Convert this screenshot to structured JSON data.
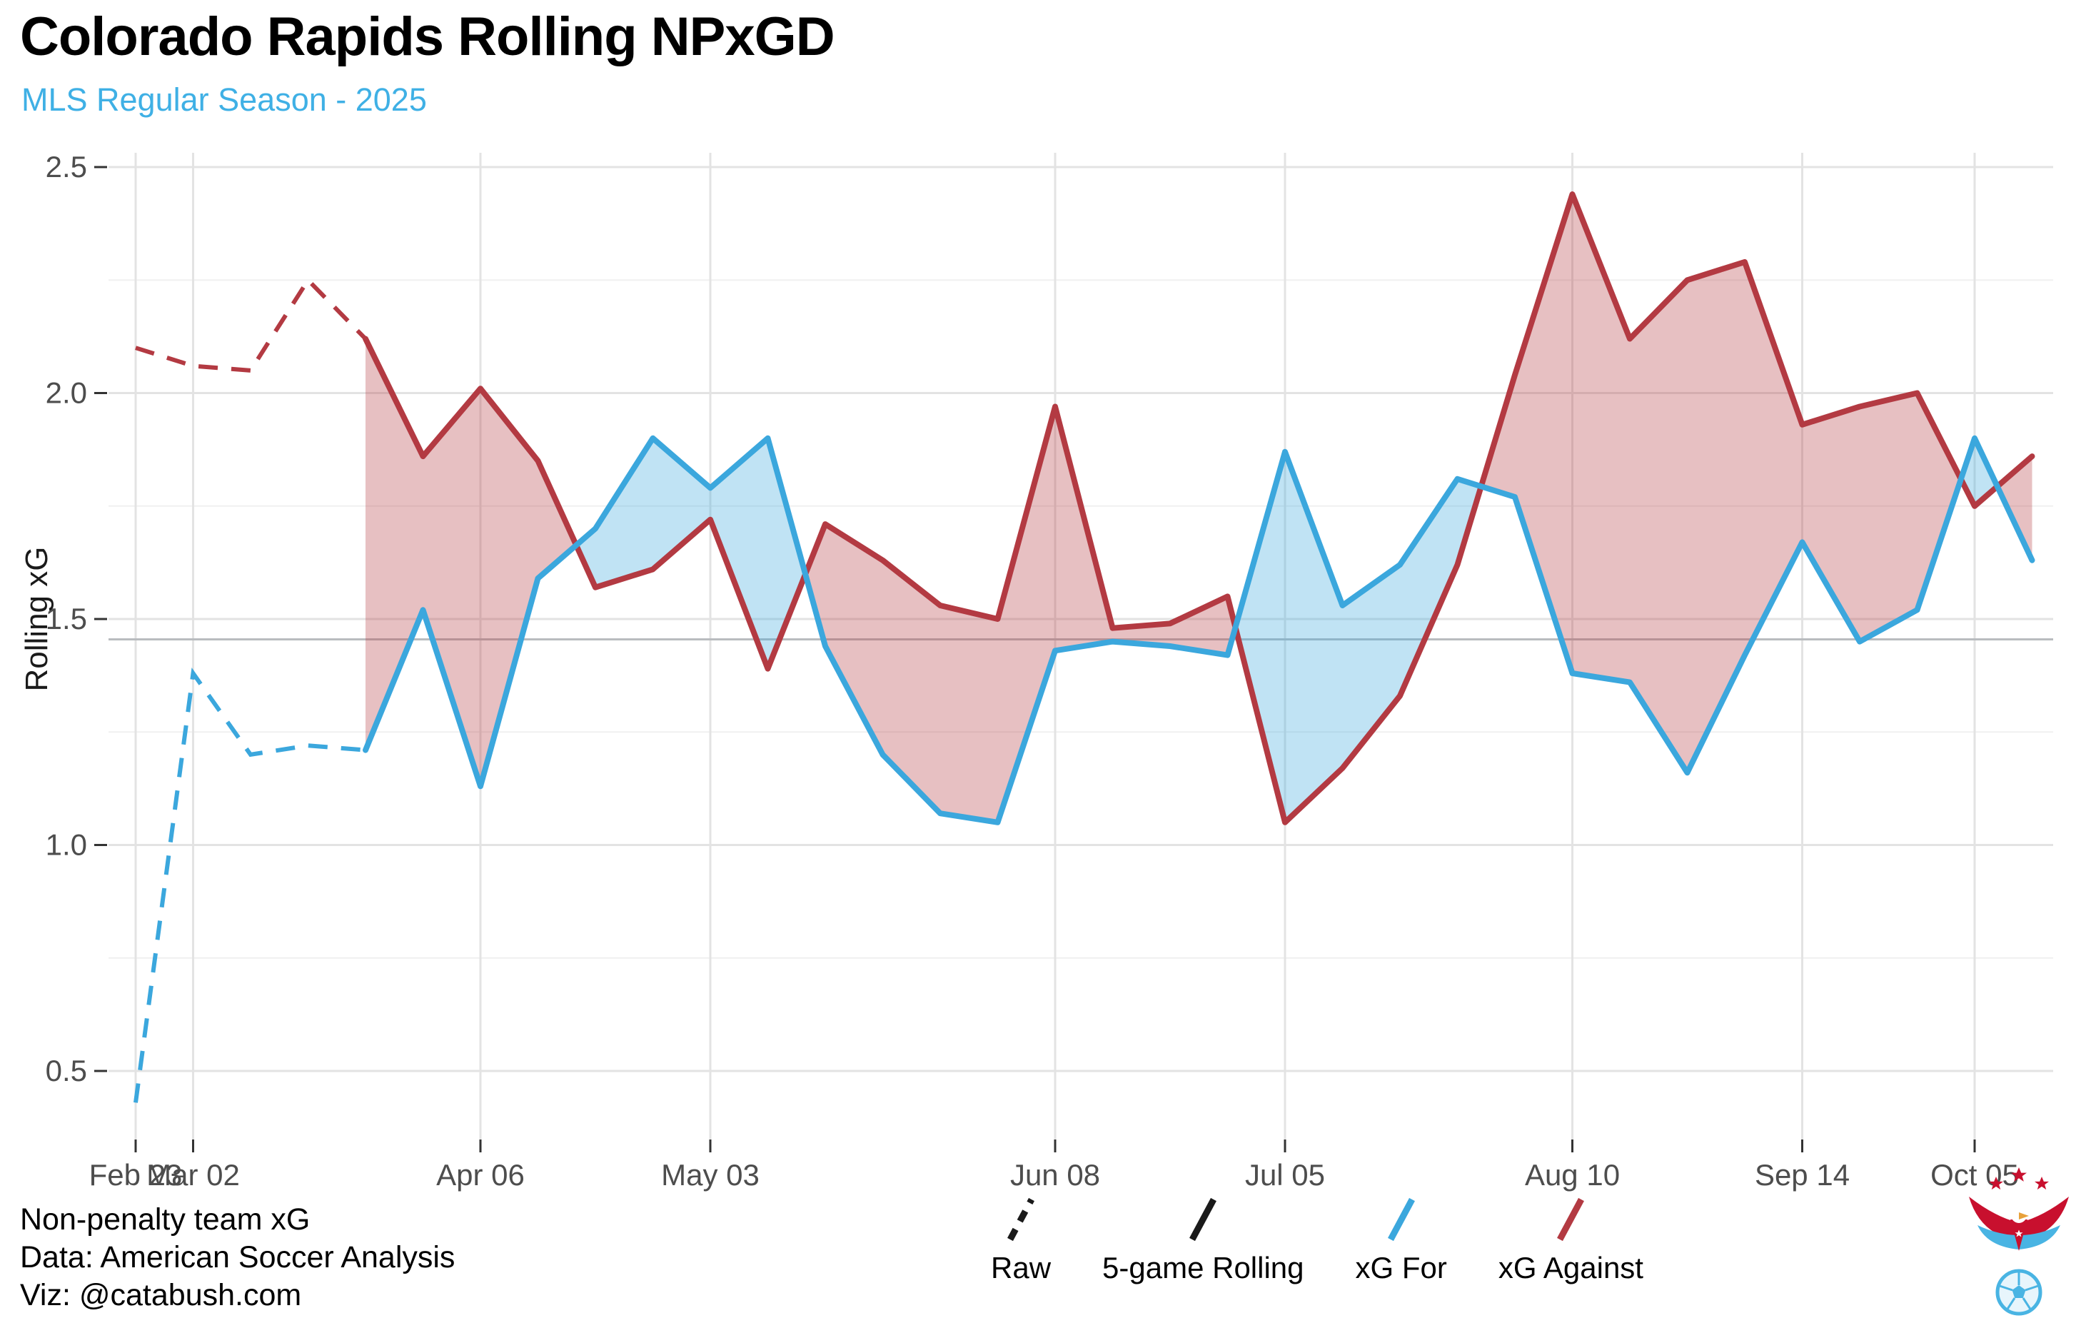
{
  "chart_data": {
    "type": "line",
    "title": "Colorado Rapids Rolling NPxGD",
    "subtitle": "MLS Regular Season - 2025",
    "ylabel": "Rolling xG",
    "xlabel": "",
    "ylim": [
      0.35,
      2.53
    ],
    "y_ticks": [
      0.5,
      1.0,
      1.5,
      2.0,
      2.5
    ],
    "y_tick_labels": [
      "0.5",
      "1.0",
      "1.5",
      "2.0",
      "2.5"
    ],
    "y_minor_ticks": [
      0.75,
      1.25,
      1.75,
      2.25
    ],
    "reference_line_value": 1.455,
    "grid": true,
    "legend_position": "bottom",
    "games": 34,
    "rolling_window": 5,
    "rolling_start_game": 5,
    "x_ticks": [
      {
        "label": "Feb 23",
        "game": 1
      },
      {
        "label": "Mar 02",
        "game": 2
      },
      {
        "label": "Apr 06",
        "game": 7
      },
      {
        "label": "May 03",
        "game": 11
      },
      {
        "label": "Jun 08",
        "game": 17
      },
      {
        "label": "Jul 05",
        "game": 21
      },
      {
        "label": "Aug 10",
        "game": 26
      },
      {
        "label": "Sep 14",
        "game": 30
      },
      {
        "label": "Oct 05",
        "game": 33
      }
    ],
    "xg_for": {
      "label": "xG For",
      "color": "#3BA7DD",
      "fill": "rgba(59,167,221,0.32)",
      "values": [
        0.43,
        1.38,
        1.2,
        1.22,
        1.21,
        1.52,
        1.13,
        1.59,
        1.7,
        1.9,
        1.79,
        1.9,
        1.44,
        1.2,
        1.07,
        1.05,
        1.43,
        1.45,
        1.44,
        1.42,
        1.87,
        1.53,
        1.62,
        1.81,
        1.77,
        1.38,
        1.36,
        1.16,
        1.42,
        1.67,
        1.45,
        1.52,
        1.9,
        1.63
      ]
    },
    "xg_against": {
      "label": "xG Against",
      "color": "#B33A42",
      "fill": "rgba(179,58,66,0.32)",
      "values": [
        2.1,
        2.06,
        2.05,
        2.25,
        2.12,
        1.86,
        2.01,
        1.85,
        1.57,
        1.61,
        1.72,
        1.39,
        1.71,
        1.63,
        1.53,
        1.5,
        1.97,
        1.48,
        1.49,
        1.55,
        1.05,
        1.17,
        1.33,
        1.62,
        2.04,
        2.44,
        2.12,
        2.25,
        2.29,
        1.93,
        1.97,
        2.0,
        1.75,
        1.86
      ]
    }
  },
  "legend": [
    {
      "label": "Raw",
      "style": "dashed",
      "color": "#1a1a1a"
    },
    {
      "label": "5-game Rolling",
      "style": "solid",
      "color": "#1a1a1a"
    },
    {
      "label": "xG For",
      "style": "solid",
      "color": "#3BA7DD"
    },
    {
      "label": "xG Against",
      "style": "solid",
      "color": "#B33A42"
    }
  ],
  "footer": {
    "line1": "Non-penalty team xG",
    "line2": "Data: American Soccer Analysis",
    "line3": "Viz: @catabush.com"
  },
  "colors": {
    "subtitle": "#3FB0E5",
    "axis_text": "#4d4d4d",
    "grid_major": "#e3e3e3",
    "grid_minor": "#f0f0f0",
    "reference_line": "#b9bcbf",
    "tick_mark": "#333333",
    "logo_red": "#C8102E",
    "logo_blue": "#49B4E3"
  }
}
